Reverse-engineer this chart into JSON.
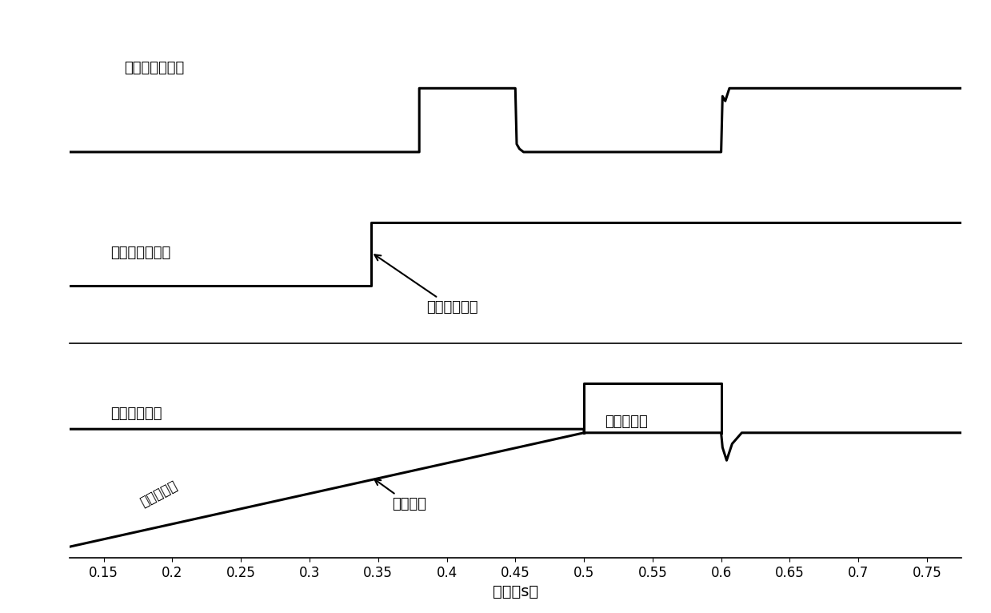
{
  "xlabel": "时间（s）",
  "xlim": [
    0.125,
    0.775
  ],
  "xticks": [
    0.15,
    0.2,
    0.25,
    0.3,
    0.35,
    0.4,
    0.45,
    0.5,
    0.55,
    0.6,
    0.65,
    0.7,
    0.75
  ],
  "xtick_labels": [
    "0.15",
    "0.2",
    "0.25",
    "0.3",
    "0.35",
    "0.4",
    "0.45",
    "0.5",
    "0.55",
    "0.6",
    "0.65",
    "0.7",
    "0.75"
  ],
  "background_color": "#ffffff",
  "line_color": "#000000",
  "label_ea": "误差放大器输出",
  "label_hyst": "滞回比较器输出",
  "label_dc": "直流电源电压",
  "label_cap": "电容电压",
  "label_cc": "恒流充电区",
  "label_switch": "环路切换时刻",
  "label_suppress": "电压抑制区",
  "fontsize": 13
}
